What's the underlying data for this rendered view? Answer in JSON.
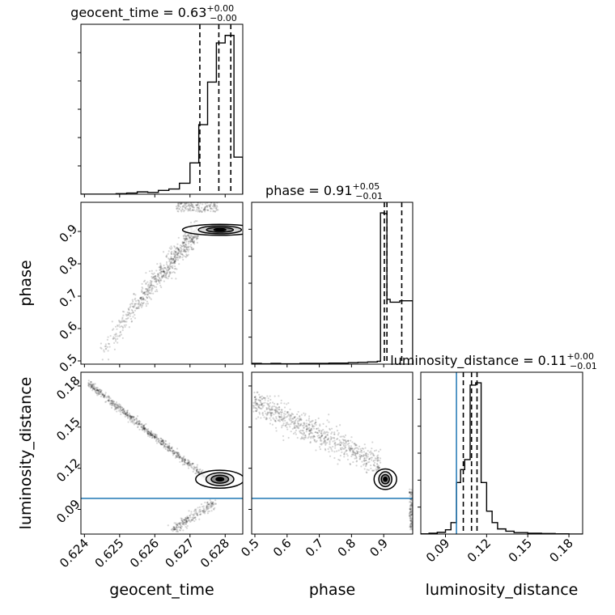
{
  "chart_data": {
    "type": "corner",
    "truth_color": "#1f77b4",
    "parameters": [
      {
        "name": "geocent_time",
        "axis_label": "geocent_time",
        "title_name": "geocent_time = ",
        "title_median": "0.63",
        "title_plus": "+0.00",
        "title_minus": "−0.00",
        "range": [
          0.6239,
          0.6285
        ],
        "ticks": [
          0.624,
          0.625,
          0.626,
          0.627,
          0.628
        ],
        "tick_labels": [
          "0.624",
          "0.625",
          "0.626",
          "0.627",
          "0.628"
        ],
        "quantiles": [
          0.62728,
          0.62782,
          0.62816
        ],
        "hist": {
          "edges": [
            0.6239,
            0.6244,
            0.6249,
            0.6252,
            0.6255,
            0.6258,
            0.6261,
            0.6264,
            0.6267,
            0.627,
            0.62725,
            0.6275,
            0.62775,
            0.628,
            0.62825,
            0.6285
          ],
          "counts": [
            0,
            0,
            2,
            4,
            8,
            6,
            13,
            18,
            38,
            108,
            240,
            387,
            522,
            548,
            128
          ]
        }
      },
      {
        "name": "phase",
        "axis_label": "phase",
        "title_name": "phase = ",
        "title_median": "0.91",
        "title_plus": "+0.05",
        "title_minus": "−0.01",
        "range": [
          0.49,
          0.99
        ],
        "ticks": [
          0.5,
          0.6,
          0.7,
          0.8,
          0.9
        ],
        "tick_labels": [
          "0.5",
          "0.6",
          "0.7",
          "0.8",
          "0.9"
        ],
        "yticks": [
          0.5,
          0.6,
          0.7,
          0.8,
          0.9
        ],
        "quantiles": [
          0.902,
          0.91,
          0.956
        ],
        "hist": {
          "edges": [
            0.49,
            0.52,
            0.55,
            0.58,
            0.61,
            0.64,
            0.67,
            0.7,
            0.73,
            0.76,
            0.79,
            0.82,
            0.85,
            0.88,
            0.89,
            0.9,
            0.91,
            0.92,
            0.95,
            0.99
          ],
          "counts": [
            2,
            1,
            2,
            1,
            1,
            2,
            2,
            2,
            3,
            3,
            4,
            5,
            6,
            8,
            420,
            418,
            180,
            172,
            176
          ]
        }
      },
      {
        "name": "luminosity_distance",
        "axis_label": "luminosity_distance",
        "title_name": "luminosity_distance = ",
        "title_median": "0.11",
        "title_plus": "+0.00",
        "title_minus": "−0.01",
        "range": [
          0.072,
          0.19
        ],
        "ticks": [
          0.09,
          0.12,
          0.15,
          0.18
        ],
        "tick_labels": [
          "0.09",
          "0.12",
          "0.15",
          "0.18"
        ],
        "yticks": [
          0.09,
          0.12,
          0.15,
          0.18
        ],
        "truth": 0.098,
        "quantiles": [
          0.103,
          0.109,
          0.113
        ],
        "hist": {
          "edges": [
            0.072,
            0.078,
            0.084,
            0.09,
            0.094,
            0.098,
            0.101,
            0.104,
            0.108,
            0.112,
            0.116,
            0.12,
            0.124,
            0.128,
            0.134,
            0.14,
            0.15,
            0.16,
            0.17,
            0.18,
            0.19
          ],
          "counts": [
            1,
            3,
            6,
            15,
            40,
            180,
            225,
            260,
            520,
            528,
            180,
            80,
            40,
            18,
            10,
            5,
            3,
            2,
            1,
            0
          ]
        }
      }
    ],
    "grid": true,
    "contour_levels": 3
  }
}
